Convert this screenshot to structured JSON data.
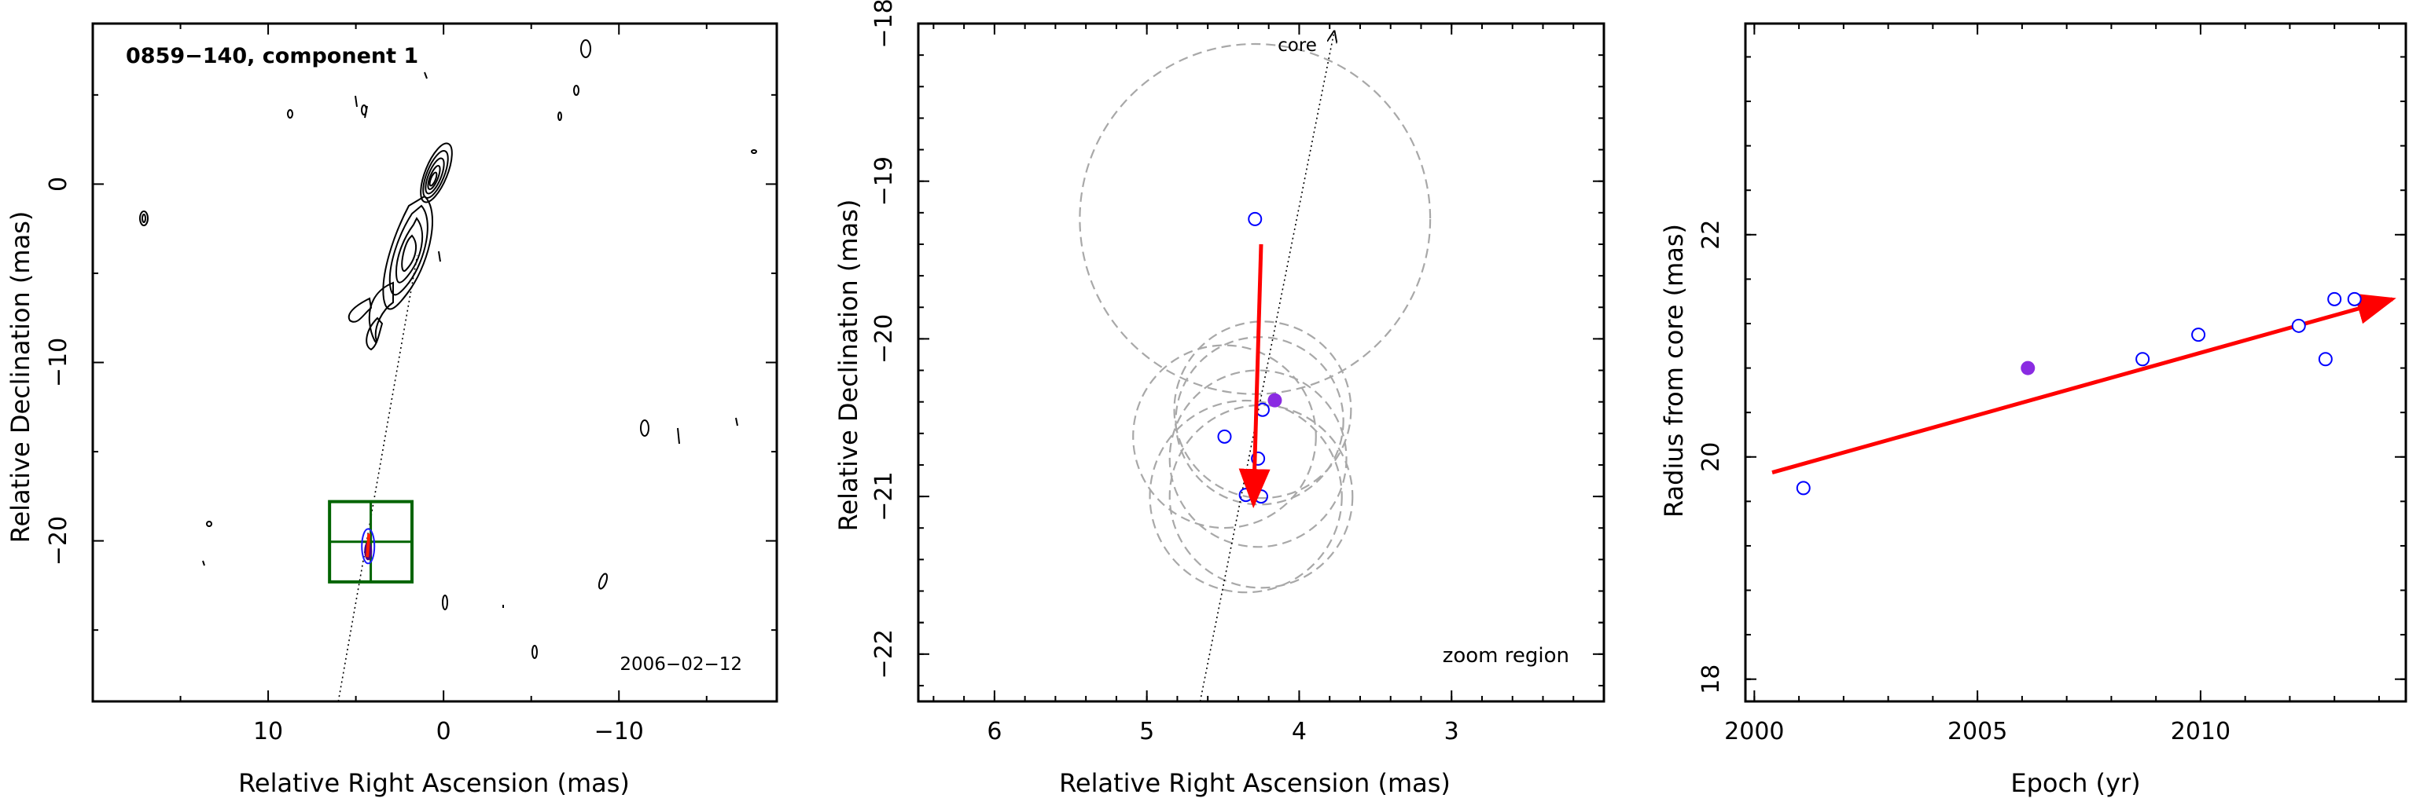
{
  "panels": [
    {
      "id": "map",
      "title": "0859−140, component 1",
      "date": "2006−02−12",
      "xlabel": "Relative Right Ascension (mas)",
      "ylabel": "Relative Declination (mas)",
      "xlim": [
        20,
        -19
      ],
      "ylim": [
        -29,
        9
      ],
      "xticks": [
        10,
        0,
        -10
      ],
      "xtick_labels": [
        "10",
        "0",
        "−10"
      ],
      "xticks_minor": [
        15,
        5,
        -5,
        -15
      ],
      "yticks": [
        0,
        -10,
        -20
      ],
      "ytick_labels": [
        "0",
        "−10",
        "−20"
      ],
      "yticks_minor": [
        5,
        -5,
        -15,
        -25
      ],
      "core_axis_line": {
        "from": [
          6,
          -29
        ],
        "to": [
          1.5,
          -4
        ]
      },
      "zoom_box": {
        "x": [
          6.5,
          1.8
        ],
        "y": [
          -17.8,
          -22.3
        ],
        "color": "#006400"
      },
      "component_marker": {
        "x": 4.3,
        "y": -20.3
      }
    },
    {
      "id": "zoom",
      "xlabel": "Relative Right Ascension (mas)",
      "ylabel": "Relative Declination (mas)",
      "annotation_core": "core",
      "annotation_zoom": "zoom region",
      "xlim": [
        6.5,
        2.0
      ],
      "ylim": [
        -22.3,
        -18.0
      ],
      "xticks": [
        6,
        5,
        4,
        3
      ],
      "xtick_labels": [
        "6",
        "5",
        "4",
        "3"
      ],
      "yticks": [
        -18,
        -19,
        -20,
        -21,
        -22
      ],
      "ytick_labels": [
        "−18",
        "−19",
        "−20",
        "−21",
        "−22"
      ],
      "core_axis_line": {
        "from": [
          4.65,
          -22.3
        ],
        "to": [
          3.77,
          -18.05
        ]
      },
      "circles": [
        {
          "x": 4.29,
          "y": -19.24,
          "r": 1.15
        },
        {
          "x": 4.24,
          "y": -20.45,
          "r": 0.58
        },
        {
          "x": 4.26,
          "y": -20.52,
          "r": 0.55
        },
        {
          "x": 4.49,
          "y": -20.62,
          "r": 0.6
        },
        {
          "x": 4.27,
          "y": -20.76,
          "r": 0.58
        },
        {
          "x": 4.35,
          "y": -21.0,
          "r": 0.63
        },
        {
          "x": 4.25,
          "y": -21.0,
          "r": 0.6
        }
      ],
      "points_open": [
        {
          "x": 4.29,
          "y": -19.24
        },
        {
          "x": 4.24,
          "y": -20.45
        },
        {
          "x": 4.49,
          "y": -20.62
        },
        {
          "x": 4.27,
          "y": -20.76
        },
        {
          "x": 4.35,
          "y": -20.99
        },
        {
          "x": 4.25,
          "y": -21.0
        }
      ],
      "point_filled": {
        "x": 4.16,
        "y": -20.39
      },
      "motion_arrow": {
        "from": [
          4.25,
          -19.4
        ],
        "to": [
          4.3,
          -21.05
        ]
      },
      "colors": {
        "open_point": "#0000ff",
        "filled_point": "#8a2be2",
        "arrow": "#ff0000"
      }
    },
    {
      "id": "radius",
      "xlabel": "Epoch (yr)",
      "ylabel": "Radius from core (mas)",
      "xlim": [
        1999.8,
        2014.6
      ],
      "ylim": [
        17.8,
        23.9
      ],
      "xticks": [
        2000,
        2005,
        2010
      ],
      "xtick_labels": [
        "2000",
        "2005",
        "2010"
      ],
      "yticks": [
        18,
        20,
        22
      ],
      "ytick_labels": [
        "18",
        "20",
        "22"
      ],
      "points_open": [
        {
          "x": 2001.1,
          "y": 19.72
        },
        {
          "x": 2008.7,
          "y": 20.88
        },
        {
          "x": 2009.95,
          "y": 21.1
        },
        {
          "x": 2012.2,
          "y": 21.18
        },
        {
          "x": 2012.8,
          "y": 20.88
        },
        {
          "x": 2013.0,
          "y": 21.42
        },
        {
          "x": 2013.45,
          "y": 21.42
        }
      ],
      "point_filled": {
        "x": 2006.13,
        "y": 20.8
      },
      "fit_arrow": {
        "from": [
          2000.4,
          19.86
        ],
        "to": [
          2014.3,
          21.42
        ]
      },
      "colors": {
        "open_point": "#0000ff",
        "filled_point": "#8a2be2",
        "arrow": "#ff0000"
      }
    }
  ],
  "chart_data": [
    {
      "type": "scatter",
      "title": "0859−140, component 1",
      "annotation": "2006−02−12",
      "xlabel": "Relative Right Ascension (mas)",
      "ylabel": "Relative Declination (mas)",
      "xlim": [
        20,
        -19
      ],
      "ylim": [
        -29,
        9
      ],
      "zoom_region": {
        "ra": [
          6.5,
          1.8
        ],
        "dec": [
          -22.3,
          -17.8
        ]
      },
      "grid": false
    },
    {
      "type": "scatter",
      "xlabel": "Relative Right Ascension (mas)",
      "ylabel": "Relative Declination (mas)",
      "annotations": [
        "core",
        "zoom region"
      ],
      "xlim": [
        6.5,
        2.0
      ],
      "ylim": [
        -22.3,
        -18.0
      ],
      "x": [
        4.29,
        4.24,
        4.49,
        4.27,
        4.35,
        4.25,
        4.16
      ],
      "y": [
        -19.24,
        -20.45,
        -20.62,
        -20.76,
        -20.99,
        -21.0,
        -20.39
      ],
      "grid": false
    },
    {
      "type": "scatter",
      "xlabel": "Epoch (yr)",
      "ylabel": "Radius from core (mas)",
      "xlim": [
        1999.8,
        2014.6
      ],
      "ylim": [
        17.8,
        23.9
      ],
      "x": [
        2001.1,
        2006.13,
        2008.7,
        2009.95,
        2012.2,
        2012.8,
        2013.0,
        2013.45
      ],
      "y": [
        19.72,
        20.8,
        20.88,
        21.1,
        21.18,
        20.88,
        21.42,
        21.42
      ],
      "fit": {
        "from": [
          2000.4,
          19.86
        ],
        "to": [
          2014.3,
          21.42
        ]
      },
      "grid": false
    }
  ]
}
